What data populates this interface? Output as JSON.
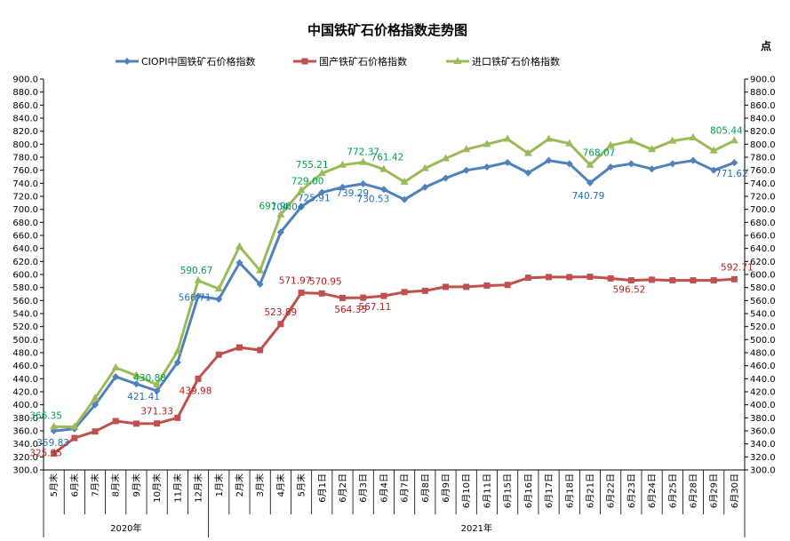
{
  "chart_data": {
    "type": "line",
    "title": "中国铁矿石价格指数走势图",
    "unit": "点",
    "ylim": [
      300,
      900
    ],
    "yticks": [
      "300.0",
      "320.0",
      "340.0",
      "360.0",
      "380.0",
      "400.0",
      "420.0",
      "440.0",
      "460.0",
      "480.0",
      "500.0",
      "520.0",
      "540.0",
      "560.0",
      "580.0",
      "600.0",
      "620.0",
      "640.0",
      "660.0",
      "680.0",
      "700.0",
      "720.0",
      "740.0",
      "760.0",
      "780.0",
      "800.0",
      "820.0",
      "840.0",
      "860.0",
      "880.0",
      "900.0"
    ],
    "grid": false,
    "legend_position": "top",
    "categories": [
      "5月末",
      "6月末",
      "7月末",
      "8月末",
      "9月末",
      "10月末",
      "11月末",
      "12月末",
      "1月末",
      "2月末",
      "3月末",
      "4月末",
      "5月末",
      "6月1日",
      "6月2日",
      "6月3日",
      "6月4日",
      "6月7日",
      "6月8日",
      "6月9日",
      "6月10日",
      "6月11日",
      "6月15日",
      "6月16日",
      "6月17日",
      "6月18日",
      "6月21日",
      "6月22日",
      "6月23日",
      "6月24日",
      "6月25日",
      "6月28日",
      "6月29日",
      "6月30日"
    ],
    "year_groups": [
      {
        "label": "2020年",
        "start": 0,
        "end": 7
      },
      {
        "label": "2021年",
        "start": 8,
        "end": 33
      }
    ],
    "series": [
      {
        "name": "CIOPI中国铁矿石价格指数",
        "color": "#4f81bd",
        "label_color": "#1f6fb5",
        "marker": "diamond",
        "values": [
          359.83,
          363,
          400,
          443,
          432,
          421.41,
          465,
          566.71,
          562,
          618,
          585,
          665,
          704.04,
          725.91,
          734,
          739.29,
          730.53,
          715,
          734,
          748,
          760,
          765,
          772,
          756,
          775,
          770,
          740.79,
          765,
          770,
          762,
          770,
          775,
          760,
          771.62
        ],
        "labels": {
          "0": "359.83",
          "5": "421.41",
          "7": "566.71",
          "12": "704.04",
          "13": "725.91",
          "15": "739.29",
          "16": "730.53",
          "26": "740.79",
          "33": "771.62"
        }
      },
      {
        "name": "国产铁矿石价格指数",
        "color": "#c0504d",
        "label_color": "#b22222",
        "marker": "square",
        "values": [
          325.35,
          349,
          359,
          375,
          371,
          371.33,
          380,
          439.98,
          477,
          488,
          484,
          523.89,
          571.97,
          570.95,
          564,
          564.35,
          567.11,
          573,
          575,
          581,
          581,
          583,
          584,
          595,
          596,
          596,
          596.52,
          594,
          591,
          592,
          591,
          591,
          591,
          592.71
        ],
        "labels": {
          "0": "325.35",
          "5": "371.33",
          "7": "439.98",
          "11": "523.89",
          "12": "571.97",
          "13": "570.95",
          "15": "564.35",
          "16": "567.11",
          "26": "596.52",
          "33": "592.71"
        }
      },
      {
        "name": "进口铁矿石价格指数",
        "color": "#9bbb59",
        "label_color": "#00a050",
        "marker": "triangle",
        "values": [
          366.35,
          366,
          410,
          457,
          445,
          430.88,
          482,
          590.67,
          578,
          643,
          606,
          691.96,
          729.0,
          755.21,
          768,
          772.37,
          761.42,
          742,
          763,
          778,
          792,
          800,
          808,
          786,
          808,
          801,
          768.07,
          798,
          805,
          792,
          805,
          810,
          790,
          805.44
        ],
        "labels": {
          "0": "366.35",
          "5": "430.88",
          "7": "590.67",
          "11": "691.96",
          "12": "729.00",
          "13": "755.21",
          "15": "772.37",
          "16": "761.42",
          "26": "768.07",
          "33": "805.44"
        }
      }
    ]
  }
}
